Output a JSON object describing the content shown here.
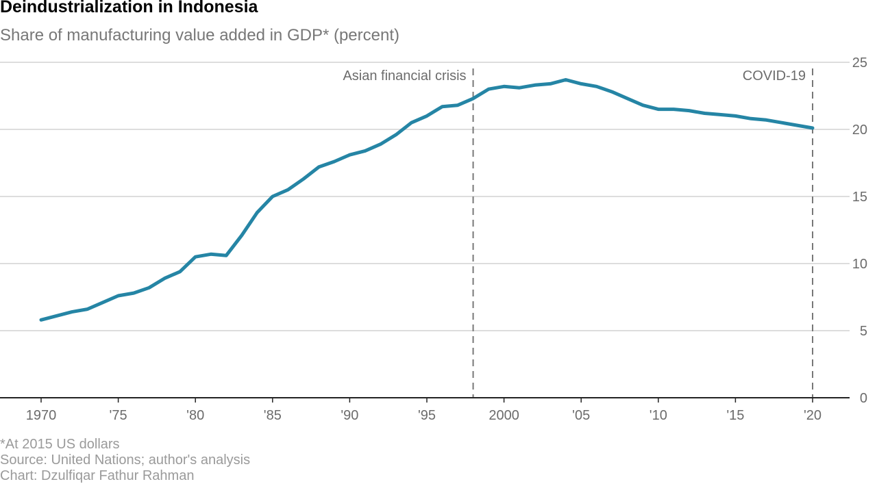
{
  "header": {
    "title": "Deindustrialization in Indonesia",
    "subtitle": "Share of manufacturing value added in GDP* (percent)"
  },
  "footnotes": {
    "note": "*At 2015 US dollars",
    "source": "Source: United Nations; author's analysis",
    "credit": "Chart: Dzulfiqar Fathur Rahman"
  },
  "colors": {
    "line": "#2585a5",
    "grid": "#dddddd",
    "axis": "#222222",
    "annotation": "#777777",
    "text": "#6b6b6b"
  },
  "chart_data": {
    "type": "line",
    "title": "Deindustrialization in Indonesia",
    "subtitle": "Share of manufacturing value added in GDP* (percent)",
    "xlim": [
      1970,
      2020
    ],
    "ylim": [
      0,
      25
    ],
    "y_axis_position": "right",
    "grid": "horizontal",
    "x_ticks": [
      {
        "value": 1970,
        "label": "1970"
      },
      {
        "value": 1975,
        "label": "'75"
      },
      {
        "value": 1980,
        "label": "'80"
      },
      {
        "value": 1985,
        "label": "'85"
      },
      {
        "value": 1990,
        "label": "'90"
      },
      {
        "value": 1995,
        "label": "'95"
      },
      {
        "value": 2000,
        "label": "2000"
      },
      {
        "value": 2005,
        "label": "'05"
      },
      {
        "value": 2010,
        "label": "'10"
      },
      {
        "value": 2015,
        "label": "'15"
      },
      {
        "value": 2020,
        "label": "'20"
      }
    ],
    "y_ticks": [
      {
        "value": 0,
        "label": "0"
      },
      {
        "value": 5,
        "label": "5"
      },
      {
        "value": 10,
        "label": "10"
      },
      {
        "value": 15,
        "label": "15"
      },
      {
        "value": 20,
        "label": "20"
      },
      {
        "value": 25,
        "label": "25"
      }
    ],
    "annotations": [
      {
        "x": 1998,
        "label": "Asian financial crisis",
        "align": "left"
      },
      {
        "x": 2020,
        "label": "COVID-19",
        "align": "left"
      }
    ],
    "series": [
      {
        "x": [
          1970,
          1971,
          1972,
          1973,
          1974,
          1975,
          1976,
          1977,
          1978,
          1979,
          1980,
          1981,
          1982,
          1983,
          1984,
          1985,
          1986,
          1987,
          1988,
          1989,
          1990,
          1991,
          1992,
          1993,
          1994,
          1995,
          1996,
          1997,
          1998,
          1999,
          2000,
          2001,
          2002,
          2003,
          2004,
          2005,
          2006,
          2007,
          2008,
          2009,
          2010,
          2011,
          2012,
          2013,
          2014,
          2015,
          2016,
          2017,
          2018,
          2019,
          2020
        ],
        "values": [
          5.8,
          6.1,
          6.4,
          6.6,
          7.1,
          7.6,
          7.8,
          8.2,
          8.9,
          9.4,
          10.5,
          10.7,
          10.6,
          12.1,
          13.8,
          15.0,
          15.5,
          16.3,
          17.2,
          17.6,
          18.1,
          18.4,
          18.9,
          19.6,
          20.5,
          21.0,
          21.7,
          21.8,
          22.3,
          23.0,
          23.2,
          23.1,
          23.3,
          23.4,
          23.7,
          23.4,
          23.2,
          22.8,
          22.3,
          21.8,
          21.5,
          21.5,
          21.4,
          21.2,
          21.1,
          21.0,
          20.8,
          20.7,
          20.5,
          20.3,
          20.1
        ]
      }
    ]
  }
}
